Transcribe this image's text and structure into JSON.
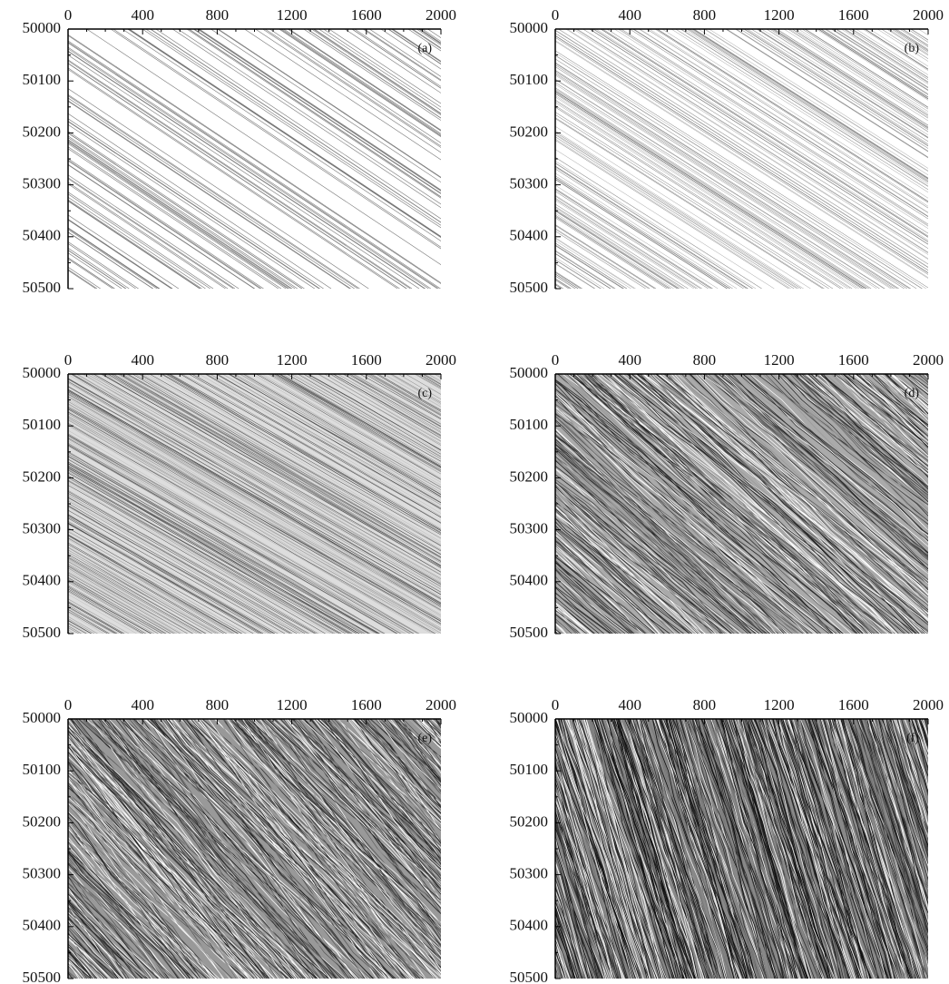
{
  "chart_data": [
    {
      "type": "spacetime",
      "panel_label": "(a)",
      "xlim": [
        0,
        2000
      ],
      "xticks": [
        0,
        400,
        800,
        1200,
        1600,
        2000
      ],
      "xminorticks": [
        100,
        200,
        300,
        500,
        600,
        700,
        900,
        1000,
        1100,
        1300,
        1400,
        1500,
        1700,
        1800,
        1900
      ],
      "ylim": [
        50000,
        50500
      ],
      "yticks": [
        50000,
        50100,
        50200,
        50300,
        50400,
        50500
      ],
      "yminorticks": [
        50050,
        50150,
        50250,
        50350,
        50450
      ]
    },
    {
      "type": "spacetime",
      "panel_label": "(b)",
      "xlim": [
        0,
        2000
      ],
      "xticks": [
        0,
        400,
        800,
        1200,
        1600,
        2000
      ],
      "xminorticks": [
        100,
        200,
        300,
        500,
        600,
        700,
        900,
        1000,
        1100,
        1300,
        1400,
        1500,
        1700,
        1800,
        1900
      ],
      "ylim": [
        50000,
        50500
      ],
      "yticks": [
        50000,
        50100,
        50200,
        50300,
        50400,
        50500
      ],
      "yminorticks": [
        50050,
        50150,
        50250,
        50350,
        50450
      ]
    },
    {
      "type": "spacetime",
      "panel_label": "(c)",
      "xlim": [
        0,
        2000
      ],
      "xticks": [
        0,
        400,
        800,
        1200,
        1600,
        2000
      ],
      "xminorticks": [
        100,
        200,
        300,
        500,
        600,
        700,
        900,
        1000,
        1100,
        1300,
        1400,
        1500,
        1700,
        1800,
        1900
      ],
      "ylim": [
        50000,
        50500
      ],
      "yticks": [
        50000,
        50100,
        50200,
        50300,
        50400,
        50500
      ],
      "yminorticks": [
        50050,
        50150,
        50250,
        50350,
        50450
      ]
    },
    {
      "type": "spacetime",
      "panel_label": "(d)",
      "xlim": [
        0,
        2000
      ],
      "xticks": [
        0,
        400,
        800,
        1200,
        1600,
        2000
      ],
      "xminorticks": [
        100,
        200,
        300,
        500,
        600,
        700,
        900,
        1000,
        1100,
        1300,
        1400,
        1500,
        1700,
        1800,
        1900
      ],
      "ylim": [
        50000,
        50500
      ],
      "yticks": [
        50000,
        50100,
        50200,
        50300,
        50400,
        50500
      ],
      "yminorticks": [
        50050,
        50150,
        50250,
        50350,
        50450
      ]
    },
    {
      "type": "spacetime",
      "panel_label": "(e)",
      "xlim": [
        0,
        2000
      ],
      "xticks": [
        0,
        400,
        800,
        1200,
        1600,
        2000
      ],
      "xminorticks": [
        100,
        200,
        300,
        500,
        600,
        700,
        900,
        1000,
        1100,
        1300,
        1400,
        1500,
        1700,
        1800,
        1900
      ],
      "ylim": [
        50000,
        50500
      ],
      "yticks": [
        50000,
        50100,
        50200,
        50300,
        50400,
        50500
      ],
      "yminorticks": [
        50050,
        50150,
        50250,
        50350,
        50450
      ]
    },
    {
      "type": "spacetime",
      "panel_label": "(f)",
      "xlim": [
        0,
        2000
      ],
      "xticks": [
        0,
        400,
        800,
        1200,
        1600,
        2000
      ],
      "xminorticks": [
        100,
        200,
        300,
        500,
        600,
        700,
        900,
        1000,
        1100,
        1300,
        1400,
        1500,
        1700,
        1800,
        1900
      ],
      "ylim": [
        50000,
        50500
      ],
      "yticks": [
        50000,
        50100,
        50200,
        50300,
        50400,
        50500
      ],
      "yminorticks": [
        50050,
        50150,
        50250,
        50350,
        50450
      ]
    }
  ]
}
